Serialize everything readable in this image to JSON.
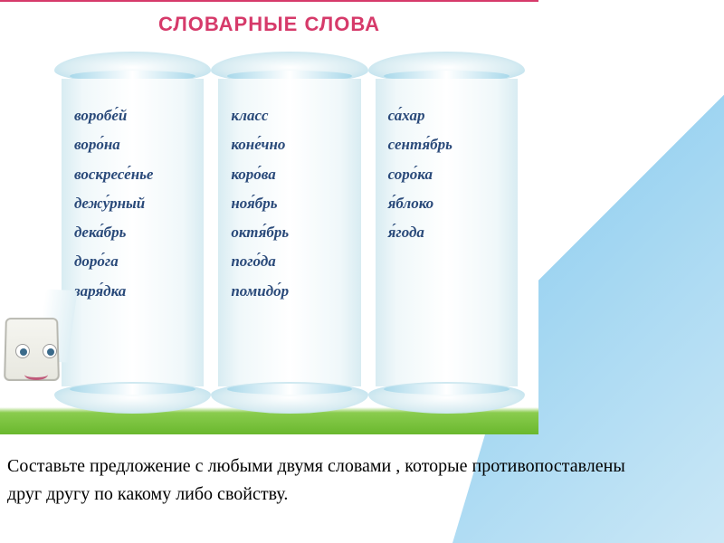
{
  "title": {
    "text": "СЛОВАРНЫЕ СЛОВА",
    "color": "#d63a6a"
  },
  "wordColor": "#2a4a7a",
  "scrolls": [
    {
      "words": [
        "воробе́й",
        "воро́на",
        "воскресе́нье",
        "дежу́рный",
        "дека́брь",
        "доро́га",
        "заря́дка"
      ]
    },
    {
      "words": [
        "класс",
        "коне́чно",
        "коро́ва",
        "ноя́брь",
        "октя́брь",
        "пого́да",
        "помидо́р"
      ]
    },
    {
      "words": [
        "са́хар",
        "сентя́брь",
        "соро́ка",
        "я́блоко",
        "я́года"
      ]
    }
  ],
  "caption": {
    "line1": "Составьте предложение с любыми двумя словами , которые противопоставлены",
    "line2": "друг другу по какому либо свойству."
  }
}
